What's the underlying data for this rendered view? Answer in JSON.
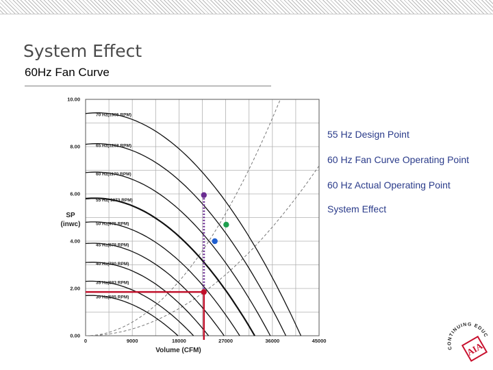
{
  "slide": {
    "title": "System Effect",
    "subtitle": "60Hz Fan Curve"
  },
  "callouts": [
    {
      "text": "55 Hz Design Point",
      "color": "#2a3b8a"
    },
    {
      "text": "60 Hz Fan Curve Operating Point",
      "color": "#2a3b8a"
    },
    {
      "text": "60 Hz Actual Operating Point",
      "color": "#2a3b8a"
    },
    {
      "text": "System Effect",
      "color": "#2a3b8a"
    }
  ],
  "logo": {
    "arc_text": "CONTINUING EDUCATION",
    "mark": "AIA",
    "mark_color": "#c8102e"
  },
  "chart_data": {
    "type": "line",
    "xlabel": "Volume (CFM)",
    "ylabel": [
      "SP",
      "(inwc)"
    ],
    "xlim": [
      0,
      45000
    ],
    "ylim": [
      0,
      10
    ],
    "xticks": [
      0,
      9000,
      18000,
      27000,
      36000,
      45000
    ],
    "xtick_labels": [
      "0",
      "9000",
      "18000",
      "27000",
      "36000",
      "45000"
    ],
    "yticks": [
      0,
      2,
      4,
      6,
      8,
      10
    ],
    "ytick_labels": [
      "0.00",
      "2.00",
      "4.00",
      "6.00",
      "8.00",
      "10.00"
    ],
    "grid": true,
    "fan_curves": [
      {
        "name": "70 Hz(1365 RPM)",
        "shutoff_sp": 9.4,
        "max_cfm": 41500
      },
      {
        "name": "65 Hz(1268 RPM)",
        "shutoff_sp": 8.1,
        "max_cfm": 38600
      },
      {
        "name": "60 Hz(1170 RPM)",
        "shutoff_sp": 6.9,
        "max_cfm": 35600
      },
      {
        "name": "55 Hz( 1073 RPM)",
        "shutoff_sp": 5.8,
        "max_cfm": 32600
      },
      {
        "name": "50 Hz(975 RPM)",
        "shutoff_sp": 4.8,
        "max_cfm": 29700
      },
      {
        "name": "45 Hz(878 RPM)",
        "shutoff_sp": 3.9,
        "max_cfm": 26700
      },
      {
        "name": "40 Hz(780 RPM)",
        "shutoff_sp": 3.1,
        "max_cfm": 23700
      },
      {
        "name": "35 Hz(683 RPM)",
        "shutoff_sp": 2.3,
        "max_cfm": 20800
      },
      {
        "name": "30 Hz(585 RPM)",
        "shutoff_sp": 1.7,
        "max_cfm": 17800
      }
    ],
    "system_curves": [
      {
        "name": "design system curve",
        "k": 3.55e-09
      },
      {
        "name": "actual system curve",
        "k": 7.1e-09
      }
    ],
    "points": [
      {
        "name": "55 Hz Design Point",
        "x": 22800,
        "y": 1.85,
        "color": "#c0102a"
      },
      {
        "name": "60 Hz Fan Curve Operating Point",
        "x": 27100,
        "y": 4.7,
        "color": "#1f9f4f"
      },
      {
        "name": "60 Hz Actual Operating Point",
        "x": 24900,
        "y": 4.0,
        "color": "#1f5fd0"
      },
      {
        "name": "System Effect",
        "x": 22800,
        "y": 5.95,
        "color": "#6a2c91"
      }
    ],
    "design_line_color": "#c0102a",
    "system_effect_color": "#6a2c91"
  }
}
